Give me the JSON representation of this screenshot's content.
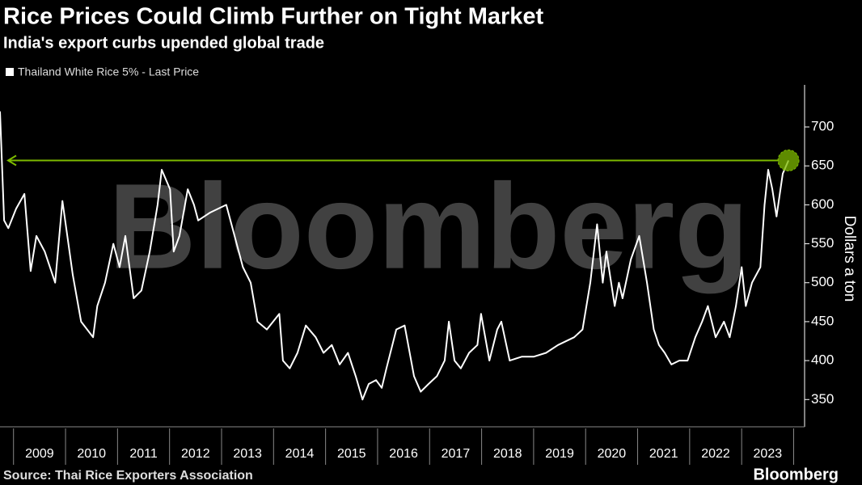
{
  "chart_data": {
    "type": "line",
    "title": "Rice Prices Could Climb Further on Tight Market",
    "subtitle": "India's export curbs upended global trade",
    "y_label": "Dollars a ton",
    "source": "Source: Thai Rice Exporters Association",
    "brand": "Bloomberg",
    "watermark": "Bloomberg",
    "x": [
      2008.74,
      2008.82,
      2008.9,
      2009.05,
      2009.21,
      2009.33,
      2009.44,
      2009.6,
      2009.8,
      2009.94,
      2010.14,
      2010.3,
      2010.53,
      2010.61,
      2010.76,
      2010.92,
      2011.04,
      2011.15,
      2011.31,
      2011.46,
      2011.62,
      2011.77,
      2011.85,
      2012.01,
      2012.08,
      2012.19,
      2012.35,
      2012.47,
      2012.55,
      2012.78,
      2013.09,
      2013.25,
      2013.41,
      2013.56,
      2013.69,
      2013.87,
      2014.11,
      2014.18,
      2014.31,
      2014.46,
      2014.62,
      2014.81,
      2014.96,
      2015.12,
      2015.27,
      2015.43,
      2015.58,
      2015.71,
      2015.83,
      2015.97,
      2016.08,
      2016.17,
      2016.36,
      2016.52,
      2016.7,
      2016.83,
      2016.98,
      2017.14,
      2017.29,
      2017.37,
      2017.48,
      2017.6,
      2017.76,
      2017.92,
      2017.99,
      2018.15,
      2018.3,
      2018.38,
      2018.54,
      2018.77,
      2019.0,
      2019.24,
      2019.47,
      2019.78,
      2019.94,
      2020.09,
      2020.22,
      2020.33,
      2020.4,
      2020.56,
      2020.64,
      2020.71,
      2020.87,
      2021.03,
      2021.18,
      2021.31,
      2021.41,
      2021.52,
      2021.65,
      2021.8,
      2021.96,
      2022.11,
      2022.24,
      2022.35,
      2022.5,
      2022.66,
      2022.77,
      2022.89,
      2023.0,
      2023.08,
      2023.2,
      2023.36,
      2023.44,
      2023.51,
      2023.59,
      2023.67,
      2023.79,
      2023.9
    ],
    "series": [
      {
        "name": "Thailand White Rice 5% - Last Price",
        "color": "#ffffff",
        "values": [
          720,
          580,
          570,
          595,
          614,
          515,
          560,
          540,
          500,
          605,
          510,
          450,
          430,
          470,
          500,
          550,
          520,
          560,
          480,
          490,
          540,
          600,
          645,
          620,
          540,
          560,
          620,
          600,
          580,
          590,
          600,
          560,
          520,
          500,
          450,
          440,
          460,
          400,
          390,
          410,
          445,
          430,
          410,
          420,
          395,
          410,
          380,
          350,
          370,
          375,
          365,
          390,
          440,
          445,
          380,
          360,
          370,
          380,
          400,
          450,
          400,
          390,
          410,
          420,
          460,
          400,
          440,
          450,
          400,
          405,
          405,
          410,
          420,
          430,
          440,
          500,
          575,
          500,
          540,
          470,
          500,
          480,
          530,
          560,
          500,
          440,
          420,
          410,
          395,
          400,
          400,
          430,
          450,
          470,
          430,
          450,
          430,
          470,
          520,
          470,
          500,
          520,
          600,
          645,
          620,
          585,
          640,
          657
        ]
      }
    ],
    "highlight": {
      "value": 657,
      "color": "#7dba00"
    },
    "xlim": [
      2008.74,
      2024.21
    ],
    "xticks": [
      {
        "value": 2009,
        "label": "2009"
      },
      {
        "value": 2010,
        "label": "2010"
      },
      {
        "value": 2011,
        "label": "2011"
      },
      {
        "value": 2012,
        "label": "2012"
      },
      {
        "value": 2013,
        "label": "2013"
      },
      {
        "value": 2014,
        "label": "2014"
      },
      {
        "value": 2015,
        "label": "2015"
      },
      {
        "value": 2016,
        "label": "2016"
      },
      {
        "value": 2017,
        "label": "2017"
      },
      {
        "value": 2018,
        "label": "2018"
      },
      {
        "value": 2019,
        "label": "2019"
      },
      {
        "value": 2020,
        "label": "2020"
      },
      {
        "value": 2021,
        "label": "2021"
      },
      {
        "value": 2022,
        "label": "2022"
      },
      {
        "value": 2023,
        "label": "2023"
      }
    ],
    "ylim": [
      315,
      754
    ],
    "yticks": [
      350,
      400,
      450,
      500,
      550,
      600,
      650,
      700
    ],
    "grid": false
  }
}
